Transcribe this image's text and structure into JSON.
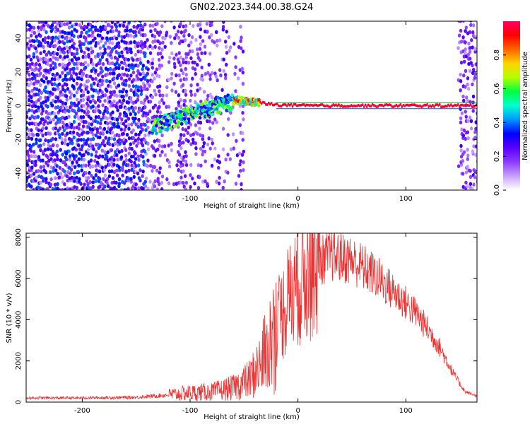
{
  "title": "GN02.2023.344.00.38.G24",
  "chart_data": [
    {
      "type": "heatmap",
      "name": "spectrogram",
      "xlabel": "Height of straight line (km)",
      "ylabel": "Frequency (Hz)",
      "xlim": [
        -252,
        166
      ],
      "ylim": [
        -50,
        50
      ],
      "xticks": [
        -200,
        -100,
        0,
        100
      ],
      "xtick_labels": [
        "-200",
        "-100",
        "0",
        "100"
      ],
      "yticks": [
        -40,
        -20,
        0,
        20,
        40
      ],
      "ytick_labels": [
        "-40",
        "-20",
        "0",
        "20",
        "40"
      ],
      "colorbar": {
        "label": "Normalized spectral amplitude",
        "range": [
          0,
          1
        ],
        "ticks": [
          0.0,
          0.2,
          0.4,
          0.6,
          0.8
        ],
        "tick_labels": [
          "0.0",
          "0.2",
          "0.4",
          "0.6",
          "0.8"
        ],
        "colormap": [
          "#ffffff",
          "#c8a0ff",
          "#8c3cff",
          "#5a00ff",
          "#0000ff",
          "#0096ff",
          "#00ffd0",
          "#00ff40",
          "#b4ff00",
          "#ffd200",
          "#ff6400",
          "#ff0000",
          "#ff0064"
        ]
      },
      "ridge": [
        {
          "x": -130,
          "f": -12
        },
        {
          "x": -115,
          "f": -8
        },
        {
          "x": -100,
          "f": -5
        },
        {
          "x": -85,
          "f": -2
        },
        {
          "x": -70,
          "f": 1
        },
        {
          "x": -55,
          "f": 3
        },
        {
          "x": -40,
          "f": 2
        },
        {
          "x": -20,
          "f": 0.5
        },
        {
          "x": 0,
          "f": 0
        },
        {
          "x": 166,
          "f": 0
        }
      ]
    },
    {
      "type": "line",
      "name": "snr",
      "xlabel": "Height of straight line (km)",
      "ylabel": "SNR (10 * v/v)",
      "xlim": [
        -252,
        166
      ],
      "ylim": [
        0,
        8200
      ],
      "xticks": [
        -200,
        -100,
        0,
        100
      ],
      "xtick_labels": [
        "-200",
        "-100",
        "0",
        "100"
      ],
      "yticks": [
        0,
        2000,
        4000,
        6000,
        8000
      ],
      "ytick_labels": [
        "0",
        "2000",
        "4000",
        "6000",
        "8000"
      ],
      "line_color": "#ee3030",
      "envelope": [
        {
          "x": -252,
          "y": 200
        },
        {
          "x": -200,
          "y": 200
        },
        {
          "x": -150,
          "y": 230
        },
        {
          "x": -120,
          "y": 350
        },
        {
          "x": -100,
          "y": 450
        },
        {
          "x": -80,
          "y": 500
        },
        {
          "x": -60,
          "y": 700
        },
        {
          "x": -45,
          "y": 1100
        },
        {
          "x": -35,
          "y": 1800
        },
        {
          "x": -25,
          "y": 3000
        },
        {
          "x": -15,
          "y": 4300
        },
        {
          "x": -5,
          "y": 5300
        },
        {
          "x": 5,
          "y": 6100
        },
        {
          "x": 15,
          "y": 6700
        },
        {
          "x": 30,
          "y": 7100
        },
        {
          "x": 50,
          "y": 6900
        },
        {
          "x": 70,
          "y": 6200
        },
        {
          "x": 90,
          "y": 5300
        },
        {
          "x": 110,
          "y": 4300
        },
        {
          "x": 130,
          "y": 2800
        },
        {
          "x": 145,
          "y": 1300
        },
        {
          "x": 155,
          "y": 500
        },
        {
          "x": 166,
          "y": 300
        }
      ]
    }
  ]
}
